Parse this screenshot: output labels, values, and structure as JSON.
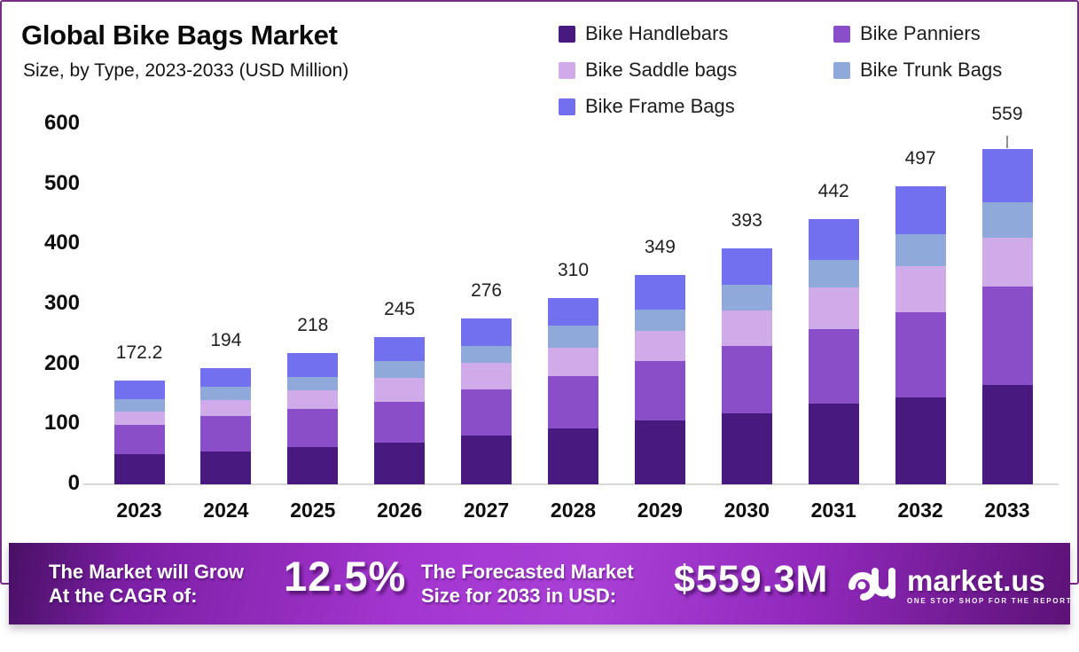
{
  "header": {
    "title": "Global Bike Bags Market",
    "subtitle": "Size, by Type, 2023-2033 (USD Million)"
  },
  "chart_data": {
    "type": "bar",
    "stacked": true,
    "title": "Global Bike Bags Market Size, by Type, 2023-2033 (USD Million)",
    "unit": "USD Million",
    "categories": [
      "2023",
      "2024",
      "2025",
      "2026",
      "2027",
      "2028",
      "2029",
      "2030",
      "2031",
      "2032",
      "2033"
    ],
    "series": [
      {
        "name": "Bike Handlebars",
        "color": "#481A80",
        "values": [
          50,
          55,
          62,
          70,
          81,
          93,
          106,
          118,
          135,
          145,
          166
        ]
      },
      {
        "name": "Bike Panniers",
        "color": "#8A4FC8",
        "values": [
          49,
          58,
          63,
          67,
          77,
          87,
          99,
          113,
          123,
          142,
          163
        ]
      },
      {
        "name": "Bike Saddle bags",
        "color": "#D0ABEA",
        "values": [
          22.2,
          27,
          31,
          40,
          44,
          48,
          50,
          59,
          70,
          76,
          82
        ]
      },
      {
        "name": "Bike Trunk Bags",
        "color": "#8FA9DB",
        "values": [
          21,
          23,
          23,
          28,
          28,
          36,
          36,
          43,
          45,
          54,
          59
        ]
      },
      {
        "name": "Bike Frame Bags",
        "color": "#7370F0",
        "values": [
          30,
          31,
          39,
          40,
          46,
          46,
          58,
          60,
          69,
          80,
          89
        ]
      }
    ],
    "totals": [
      "172.2",
      "194",
      "218",
      "245",
      "276",
      "310",
      "349",
      "393",
      "442",
      "497",
      "559"
    ],
    "ylim": [
      0,
      600
    ],
    "yticks": [
      0,
      100,
      200,
      300,
      400,
      500,
      600
    ],
    "grid": false,
    "legend_position": "top-right"
  },
  "banner": {
    "cagr_label_line1": "The Market will Grow",
    "cagr_label_line2": "At the CAGR of:",
    "cagr_value": "12.5%",
    "forecast_label_line1": "The Forecasted Market",
    "forecast_label_line2": "Size for 2033 in USD:",
    "forecast_value": "$559.3M",
    "brand_name": "market.us",
    "brand_tagline": "ONE STOP SHOP FOR THE REPORTS"
  },
  "colors": {
    "card_border": "#772D86",
    "axis_line": "#D8D8D8",
    "banner_gradient_start": "#481064",
    "banner_gradient_mid": "#A637D2",
    "banner_gradient_end": "#5C1277"
  }
}
